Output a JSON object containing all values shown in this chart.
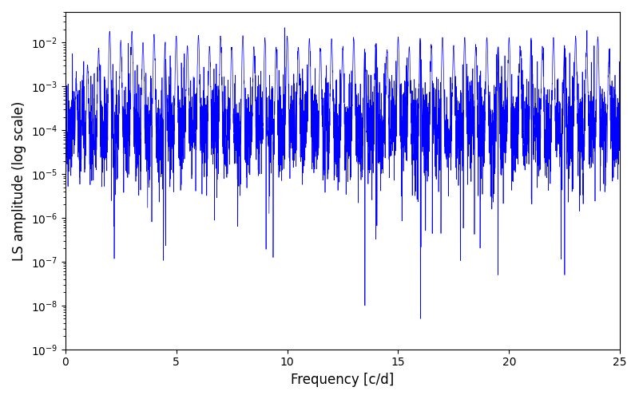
{
  "xlabel": "Frequency [c/d]",
  "ylabel": "LS amplitude (log scale)",
  "title": "",
  "line_color": "#0000ff",
  "xlim": [
    0,
    25
  ],
  "ylim": [
    1e-09,
    0.05
  ],
  "n_points": 5000,
  "background_color": "#ffffff",
  "figsize": [
    8.0,
    5.0
  ],
  "dpi": 100,
  "seed": 77,
  "base_log": -4.0,
  "noise_sigma": 0.6,
  "peak_sigma": 0.025
}
